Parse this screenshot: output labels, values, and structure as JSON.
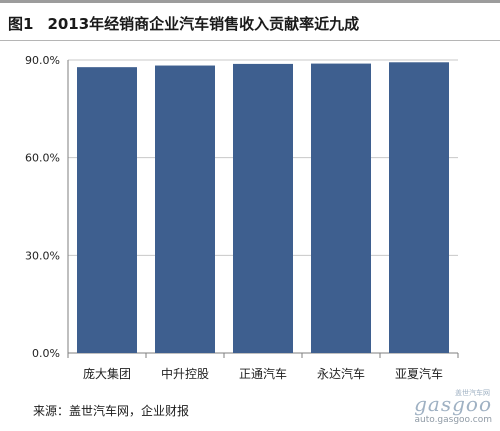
{
  "figure": {
    "label": "图1",
    "title": "2013年经销商企业汽车销售收入贡献率近九成"
  },
  "chart_data": {
    "type": "bar",
    "categories": [
      "庞大集团",
      "中升控股",
      "正通汽车",
      "永达汽车",
      "亚夏汽车"
    ],
    "values": [
      87.8,
      88.3,
      88.8,
      88.9,
      89.3
    ],
    "ylim": [
      0,
      90
    ],
    "yticks": [
      0,
      30,
      60,
      90
    ],
    "ytick_labels": [
      "0.0%",
      "30.0%",
      "60.0%",
      "90.0%"
    ],
    "bar_color": "#3e5f8f",
    "grid": true,
    "legend": "none"
  },
  "source": "来源：盖世汽车网，企业财报",
  "watermark": {
    "brand": "gasgoo",
    "cn": "盖世汽车网",
    "url": "auto.gasgoo.com"
  }
}
